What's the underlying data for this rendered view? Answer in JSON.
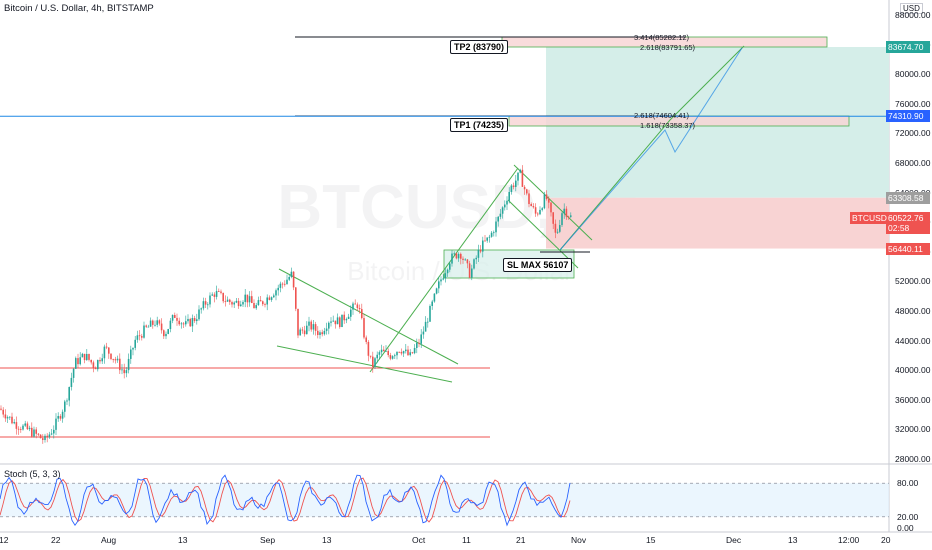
{
  "header": {
    "title": "Bitcoin / U.S. Dollar, 4h, BITSTAMP",
    "currency": "USD",
    "watermark_main": "BTCUSD, 4h",
    "watermark_sub": "Bitcoin / U.S. Dollar"
  },
  "colors": {
    "up": "#26a69a",
    "down": "#ef5350",
    "take_profit_zone": "#d5eee9",
    "stop_zone": "#f8d3d3",
    "trend_line": "#4caf50",
    "support_line": "#ef5350",
    "fib_line": "#1e88e5",
    "stoch_k": "#2962ff",
    "stoch_d": "#ef5350"
  },
  "annotations": {
    "tp2_label": "TP2 (83790)",
    "tp1_label": "TP1 (74235)",
    "sl_label": "SL MAX 56107",
    "fib_tp2_a": "3.414(85282.12)",
    "fib_tp2_b": "2.618(83791.65)",
    "fib_tp1_a": "2.618(74604.41)",
    "fib_tp1_b": "1.618(73358.37)"
  },
  "price_tags": [
    {
      "value": "83674.70",
      "price": 83674.7,
      "color": "#26a69a",
      "sub": ""
    },
    {
      "value": "74310.90",
      "price": 74310.9,
      "color": "#2962ff",
      "sub": ""
    },
    {
      "value": "63308.58",
      "price": 63308.58,
      "color": "#9e9e9e",
      "sub": ""
    },
    {
      "value": "60522.76",
      "price": 60522.76,
      "color": "#ef5350",
      "sub": "02:58"
    },
    {
      "value": "56440.11",
      "price": 56440.11,
      "color": "#ef5350",
      "sub": ""
    }
  ],
  "ticker_tag": "BTCUSD",
  "stoch": {
    "label": "Stoch (5, 3, 3)",
    "ticks": [
      "80.00",
      "20.00",
      "0.00"
    ]
  },
  "chart_data": {
    "type": "candlestick",
    "symbol": "BTCUSD",
    "timeframe": "4h",
    "y_ticks": [
      28000,
      32000,
      36000,
      40000,
      44000,
      48000,
      52000,
      56000,
      60000,
      64000,
      68000,
      72000,
      76000,
      80000,
      84000,
      88000
    ],
    "y_tick_labels": [
      "28000.00",
      "32000.00",
      "36000.00",
      "40000.00",
      "44000.00",
      "48000.00",
      "52000.00",
      "56000.00",
      "60000.00",
      "64000.00",
      "68000.00",
      "72000.00",
      "76000.00",
      "80000.00",
      "84000.00",
      "88000.00"
    ],
    "ylim": [
      28000,
      88000
    ],
    "x_labels": [
      "12",
      "22",
      "Aug",
      "13",
      "Sep",
      "13",
      "Oct",
      "11",
      "21",
      "Nov",
      "15",
      "Dec",
      "13",
      "12:00",
      "20"
    ],
    "price_path": [
      [
        0,
        34800
      ],
      [
        15,
        32800
      ],
      [
        30,
        31800
      ],
      [
        45,
        30500
      ],
      [
        55,
        32500
      ],
      [
        65,
        35500
      ],
      [
        75,
        41000
      ],
      [
        85,
        42000
      ],
      [
        95,
        40500
      ],
      [
        105,
        43000
      ],
      [
        115,
        41500
      ],
      [
        125,
        39500
      ],
      [
        135,
        44000
      ],
      [
        145,
        45500
      ],
      [
        155,
        46500
      ],
      [
        165,
        45000
      ],
      [
        175,
        47500
      ],
      [
        185,
        46000
      ],
      [
        195,
        47000
      ],
      [
        205,
        49000
      ],
      [
        215,
        50500
      ],
      [
        225,
        49500
      ],
      [
        235,
        49000
      ],
      [
        245,
        50000
      ],
      [
        255,
        48500
      ],
      [
        265,
        49500
      ],
      [
        275,
        50800
      ],
      [
        285,
        52000
      ],
      [
        292,
        53000
      ],
      [
        298,
        45000
      ],
      [
        310,
        46000
      ],
      [
        320,
        45000
      ],
      [
        330,
        47000
      ],
      [
        340,
        46500
      ],
      [
        350,
        48000
      ],
      [
        358,
        49000
      ],
      [
        366,
        43500
      ],
      [
        372,
        40500
      ],
      [
        380,
        42500
      ],
      [
        390,
        42000
      ],
      [
        400,
        43000
      ],
      [
        410,
        41800
      ],
      [
        420,
        44000
      ],
      [
        430,
        48000
      ],
      [
        440,
        52000
      ],
      [
        450,
        55000
      ],
      [
        460,
        56000
      ],
      [
        470,
        53000
      ],
      [
        480,
        56500
      ],
      [
        490,
        58000
      ],
      [
        500,
        61000
      ],
      [
        510,
        64500
      ],
      [
        520,
        66500
      ],
      [
        528,
        63000
      ],
      [
        536,
        61000
      ],
      [
        546,
        63500
      ],
      [
        556,
        58000
      ],
      [
        563,
        62000
      ],
      [
        572,
        60500
      ]
    ],
    "stoch_path": [
      50,
      80,
      30,
      70,
      20,
      85,
      40,
      60,
      15,
      75,
      35,
      90,
      25,
      65,
      45,
      80,
      20,
      70,
      30,
      85
    ]
  }
}
